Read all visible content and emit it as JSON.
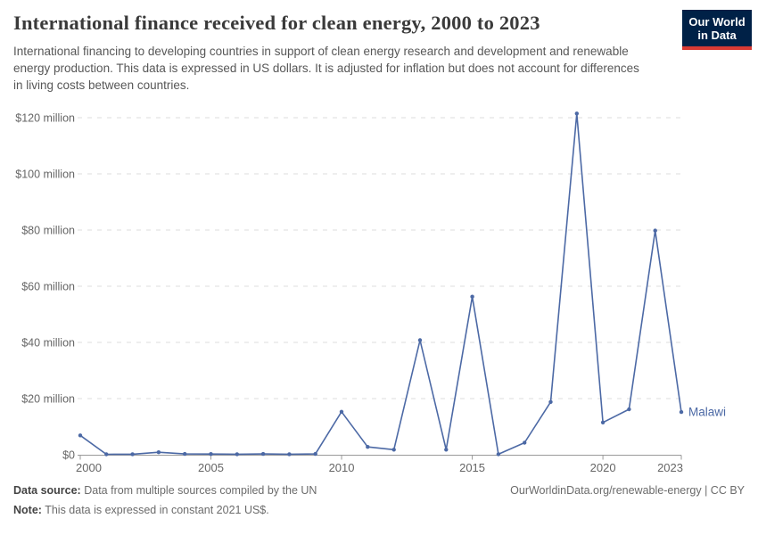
{
  "header": {
    "title": "International finance received for clean energy, 2000 to 2023",
    "subtitle": "International financing to developing countries in support of clean energy research and development and renewable energy production. This data is expressed in US dollars. It is adjusted for inflation but does not account for differences in living costs between countries.",
    "logo": {
      "line1": "Our World",
      "line2": "in Data"
    }
  },
  "chart_data": {
    "type": "line",
    "title": "International finance received for clean energy, 2000 to 2023",
    "entity": "Malawi",
    "y_unit": "US$ million",
    "x": [
      2000,
      2001,
      2002,
      2003,
      2004,
      2005,
      2006,
      2007,
      2008,
      2009,
      2010,
      2011,
      2012,
      2013,
      2014,
      2015,
      2016,
      2017,
      2018,
      2019,
      2020,
      2021,
      2022,
      2023
    ],
    "series": [
      {
        "name": "Malawi",
        "color": "#4C69A5",
        "values": [
          6.9,
          0.15,
          0.2,
          0.9,
          0.3,
          0.25,
          0.2,
          0.3,
          0.2,
          0.3,
          15.3,
          2.8,
          1.8,
          40.8,
          1.8,
          56.3,
          0.2,
          4.3,
          18.8,
          121.5,
          11.5,
          16.2,
          79.8,
          15.2
        ]
      }
    ],
    "x_ticks": [
      2000,
      2005,
      2010,
      2015,
      2020,
      2023
    ],
    "y_ticks": [
      0,
      20,
      40,
      60,
      80,
      100,
      120
    ],
    "y_tick_labels": [
      "$0",
      "$20 million",
      "$40 million",
      "$60 million",
      "$80 million",
      "$100 million",
      "$120 million"
    ],
    "xlim": [
      2000,
      2023
    ],
    "ylim": [
      0,
      125
    ],
    "grid": "horizontal-dashed",
    "legend_position": "line-end-label"
  },
  "footer": {
    "source_label": "Data source:",
    "source_text": "Data from multiple sources compiled by the UN",
    "note_label": "Note:",
    "note_text": "This data is expressed in constant 2021 US$.",
    "link": "OurWorldinData.org/renewable-energy | CC BY"
  },
  "colors": {
    "accent_line": "#4C69A5",
    "logo_navy": "#002147",
    "logo_red": "#D93A34",
    "grid": "#DCDCDC",
    "axis": "#999999",
    "tick_text": "#666666"
  }
}
